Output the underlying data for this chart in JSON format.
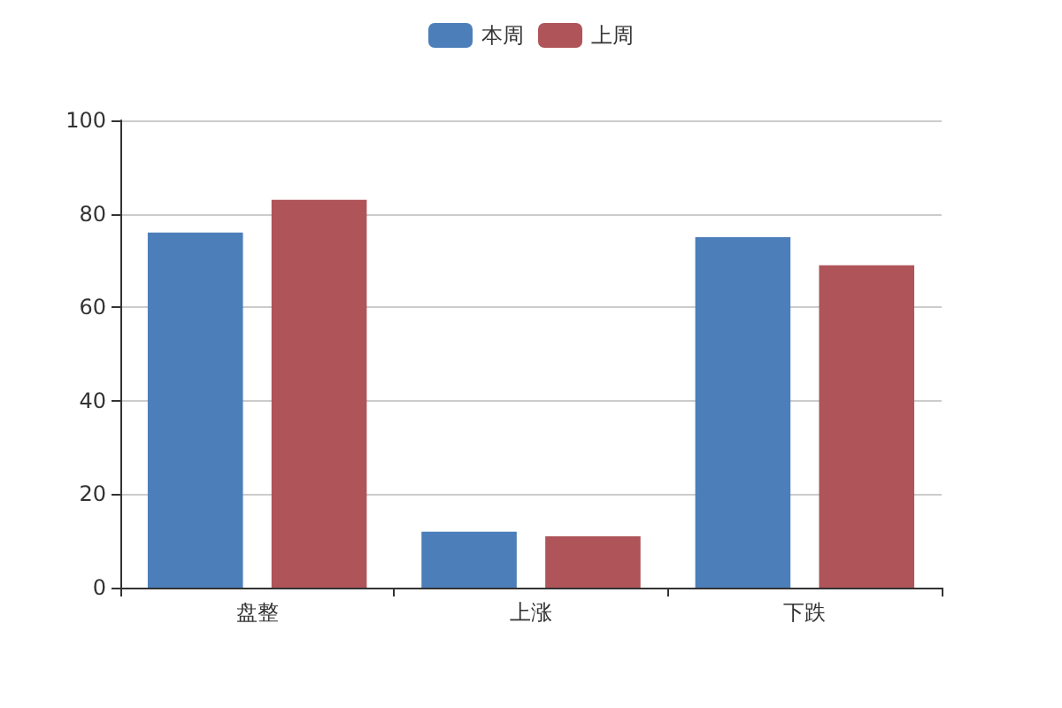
{
  "chart_data": {
    "type": "bar",
    "categories": [
      "盘整",
      "上涨",
      "下跌"
    ],
    "series": [
      {
        "name": "本周",
        "color": "#4c7fba",
        "values": [
          76,
          12,
          75
        ]
      },
      {
        "name": "上周",
        "color": "#af5459",
        "values": [
          83,
          11,
          69
        ]
      }
    ],
    "ylim": [
      0,
      100
    ],
    "yticks": [
      0,
      20,
      40,
      60,
      80,
      100
    ],
    "grid": "y",
    "legend": "top"
  }
}
